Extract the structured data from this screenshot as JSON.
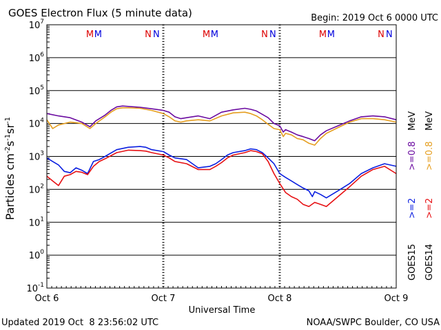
{
  "chart_data": {
    "type": "line",
    "title": "GOES Electron Flux (5 minute data)",
    "begin_label": "Begin: 2019 Oct 6 0000 UTC",
    "xlabel": "Universal Time",
    "ylabel_base": "Particles cm",
    "ylabel_sup1": "-2",
    "ylabel_mid1": "s",
    "ylabel_sup2": "-1",
    "ylabel_mid2": "sr",
    "ylabel_sup3": "-1",
    "y_scale": "log",
    "ylim": [
      0.1,
      10000000
    ],
    "y_ticks": [
      {
        "base": "10",
        "exp": "7",
        "value": 10000000
      },
      {
        "base": "10",
        "exp": "6",
        "value": 1000000
      },
      {
        "base": "10",
        "exp": "5",
        "value": 100000
      },
      {
        "base": "10",
        "exp": "4",
        "value": 10000
      },
      {
        "base": "10",
        "exp": "3",
        "value": 1000
      },
      {
        "base": "10",
        "exp": "2",
        "value": 100
      },
      {
        "base": "10",
        "exp": "1",
        "value": 10
      },
      {
        "base": "10",
        "exp": "0",
        "value": 1
      },
      {
        "base": "10",
        "exp": "-1",
        "value": 0.1
      }
    ],
    "x_ticks": [
      {
        "label": "Oct 6",
        "day": 0
      },
      {
        "label": "Oct 7",
        "day": 1
      },
      {
        "label": "Oct 8",
        "day": 2
      },
      {
        "label": "Oct 9",
        "day": 3
      }
    ],
    "xlim_days": [
      0,
      3
    ],
    "threshold": 1000,
    "markers": [
      {
        "text": "M",
        "day": 0.37,
        "color": "#dd0000"
      },
      {
        "text": "M",
        "day": 0.44,
        "color": "#0000dd"
      },
      {
        "text": "N",
        "day": 0.87,
        "color": "#dd0000"
      },
      {
        "text": "N",
        "day": 0.94,
        "color": "#0000dd"
      },
      {
        "text": "M",
        "day": 1.37,
        "color": "#dd0000"
      },
      {
        "text": "M",
        "day": 1.44,
        "color": "#0000dd"
      },
      {
        "text": "N",
        "day": 1.87,
        "color": "#dd0000"
      },
      {
        "text": "N",
        "day": 1.94,
        "color": "#0000dd"
      },
      {
        "text": "M",
        "day": 2.37,
        "color": "#dd0000"
      },
      {
        "text": "M",
        "day": 2.44,
        "color": "#0000dd"
      },
      {
        "text": "N",
        "day": 2.87,
        "color": "#dd0000"
      },
      {
        "text": "N",
        "day": 2.94,
        "color": "#0000dd"
      }
    ],
    "series": [
      {
        "name": "GOES15 >=0.8 MeV",
        "color": "#6a0aa0",
        "x": [
          0,
          0.1,
          0.2,
          0.3,
          0.37,
          0.42,
          0.5,
          0.55,
          0.6,
          0.65,
          0.7,
          0.8,
          0.9,
          1.0,
          1.05,
          1.1,
          1.15,
          1.2,
          1.3,
          1.4,
          1.5,
          1.6,
          1.7,
          1.75,
          1.8,
          1.85,
          1.9,
          1.95,
          2.0,
          2.03,
          2.05,
          2.1,
          2.15,
          2.2,
          2.25,
          2.3,
          2.35,
          2.4,
          2.5,
          2.6,
          2.7,
          2.8,
          2.9,
          3.0
        ],
        "y": [
          20000,
          17000,
          15000,
          11000,
          8000,
          12000,
          18000,
          25000,
          32000,
          34000,
          33000,
          31000,
          28000,
          25000,
          22000,
          16000,
          14000,
          15000,
          17000,
          14000,
          22000,
          26000,
          29000,
          27000,
          24000,
          19000,
          15000,
          10000,
          8500,
          5500,
          6500,
          5500,
          4500,
          4000,
          3500,
          3000,
          4500,
          6000,
          8500,
          12000,
          16000,
          17000,
          16000,
          13000
        ]
      },
      {
        "name": "GOES14 >=0.8 MeV",
        "color": "#e59e1f",
        "x": [
          0,
          0.05,
          0.1,
          0.2,
          0.3,
          0.37,
          0.42,
          0.5,
          0.55,
          0.6,
          0.65,
          0.7,
          0.8,
          0.9,
          1.0,
          1.05,
          1.1,
          1.15,
          1.2,
          1.3,
          1.4,
          1.5,
          1.6,
          1.7,
          1.75,
          1.8,
          1.85,
          1.9,
          1.95,
          2.0,
          2.03,
          2.05,
          2.1,
          2.15,
          2.2,
          2.25,
          2.3,
          2.35,
          2.4,
          2.5,
          2.6,
          2.7,
          2.8,
          2.9,
          3.0
        ],
        "y": [
          13000,
          7000,
          9000,
          11000,
          10000,
          7000,
          10000,
          16000,
          22000,
          28000,
          30000,
          30000,
          29000,
          25000,
          20000,
          16000,
          12000,
          11000,
          12000,
          13000,
          12000,
          17000,
          21000,
          22000,
          20000,
          17000,
          13000,
          9500,
          7000,
          6500,
          4000,
          5000,
          4500,
          3500,
          3200,
          2500,
          2200,
          3500,
          5000,
          7500,
          11000,
          14000,
          14000,
          13000,
          11000
        ]
      },
      {
        "name": "GOES15 >=2 MeV",
        "color": "#0a1ee0",
        "x": [
          0,
          0.05,
          0.1,
          0.15,
          0.2,
          0.25,
          0.3,
          0.35,
          0.4,
          0.45,
          0.5,
          0.6,
          0.7,
          0.8,
          0.85,
          0.9,
          1.0,
          1.05,
          1.1,
          1.2,
          1.3,
          1.4,
          1.45,
          1.5,
          1.55,
          1.6,
          1.7,
          1.75,
          1.8,
          1.85,
          1.9,
          1.95,
          2.0,
          2.05,
          2.1,
          2.15,
          2.2,
          2.25,
          2.28,
          2.3,
          2.35,
          2.4,
          2.5,
          2.6,
          2.7,
          2.8,
          2.9,
          3.0
        ],
        "y": [
          900,
          700,
          550,
          350,
          320,
          450,
          380,
          300,
          700,
          800,
          1000,
          1600,
          1900,
          2000,
          1900,
          1600,
          1400,
          1100,
          900,
          800,
          450,
          500,
          600,
          800,
          1100,
          1300,
          1500,
          1700,
          1600,
          1300,
          900,
          600,
          300,
          230,
          180,
          140,
          110,
          90,
          60,
          85,
          70,
          55,
          90,
          150,
          300,
          450,
          600,
          500
        ]
      },
      {
        "name": "GOES14 >=2 MeV",
        "color": "#e60f12",
        "x": [
          0,
          0.05,
          0.1,
          0.15,
          0.2,
          0.25,
          0.3,
          0.35,
          0.4,
          0.45,
          0.5,
          0.6,
          0.7,
          0.8,
          0.85,
          0.9,
          1.0,
          1.05,
          1.1,
          1.2,
          1.3,
          1.4,
          1.45,
          1.5,
          1.55,
          1.6,
          1.7,
          1.75,
          1.8,
          1.85,
          1.9,
          1.95,
          2.0,
          2.05,
          2.1,
          2.15,
          2.2,
          2.25,
          2.3,
          2.35,
          2.4,
          2.5,
          2.6,
          2.7,
          2.8,
          2.9,
          3.0
        ],
        "y": [
          250,
          180,
          130,
          250,
          280,
          350,
          330,
          280,
          500,
          700,
          850,
          1300,
          1550,
          1500,
          1450,
          1300,
          1100,
          900,
          700,
          600,
          400,
          400,
          500,
          650,
          900,
          1100,
          1300,
          1500,
          1400,
          1200,
          700,
          300,
          150,
          80,
          60,
          50,
          35,
          30,
          40,
          35,
          30,
          60,
          120,
          250,
          400,
          500,
          300
        ]
      }
    ],
    "legend": [
      {
        "text": "GOES15",
        "color": "#000000"
      },
      {
        "text": "GOES14",
        "color": "#000000"
      },
      {
        "text": ">=2",
        "color": "#0a1ee0"
      },
      {
        "text": ">=2",
        "color": "#e60f12"
      },
      {
        "text": ">=0.8",
        "color": "#6a0aa0"
      },
      {
        "text": ">=0.8",
        "color": "#e59e1f"
      },
      {
        "text": "MeV",
        "color": "#000000"
      },
      {
        "text": "MeV",
        "color": "#000000"
      }
    ],
    "legend_placement": "right"
  },
  "footer": {
    "updated": "Updated 2019 Oct  8 23:56:02 UTC",
    "credit": "NOAA/SWPC Boulder, CO USA"
  }
}
